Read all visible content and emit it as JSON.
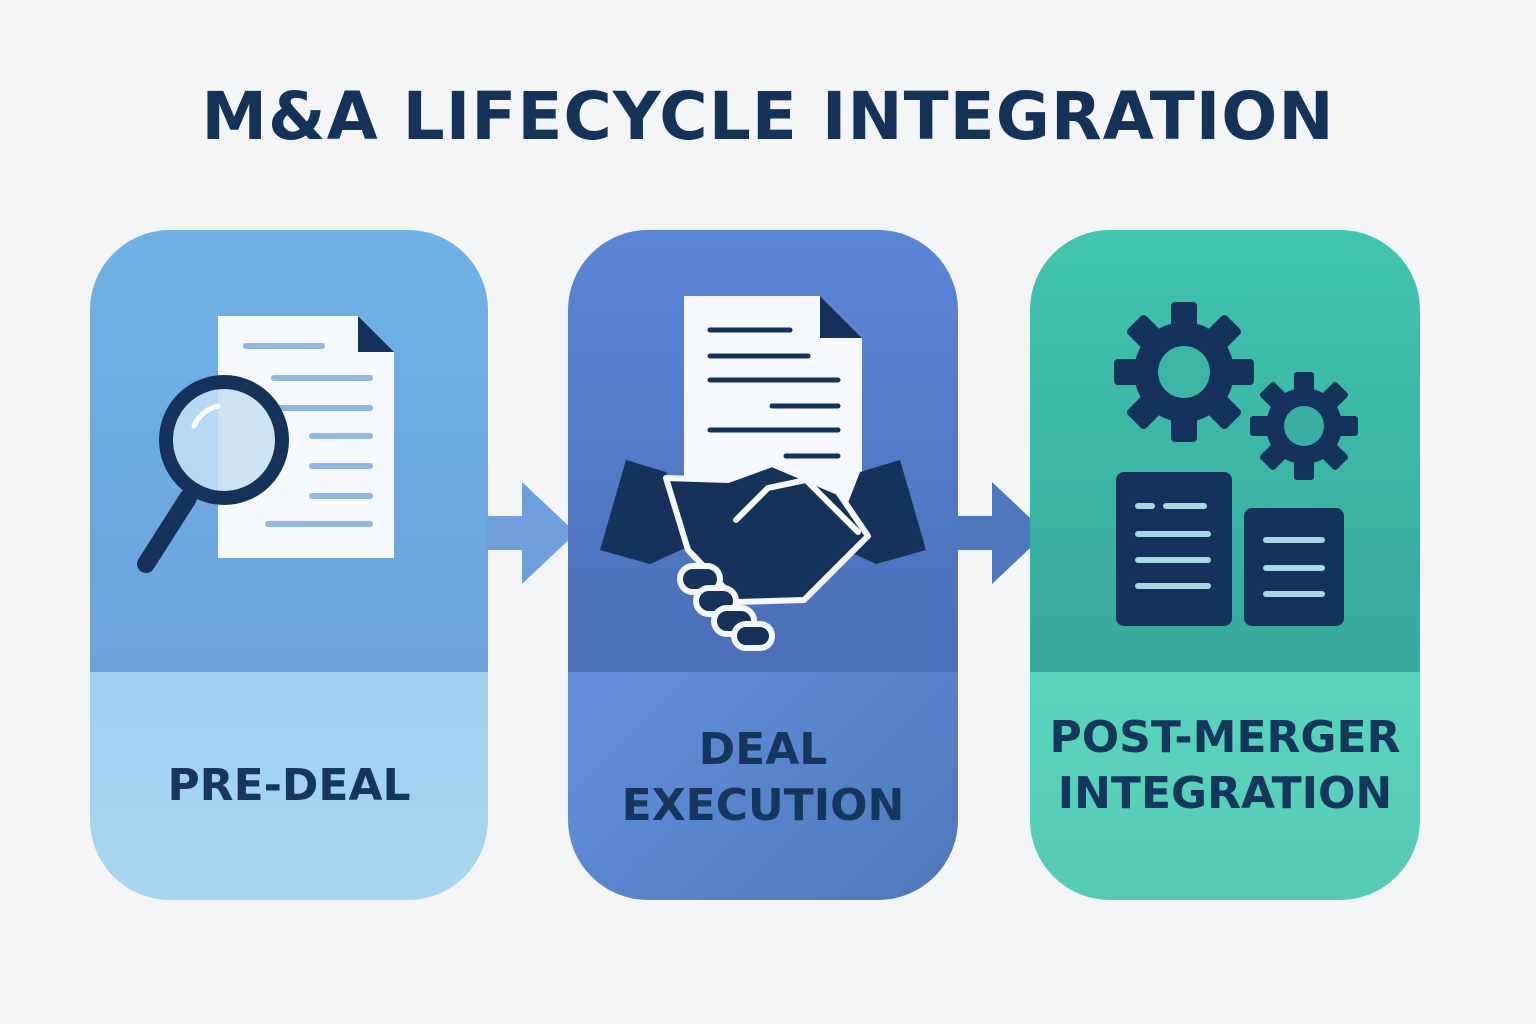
{
  "title": "M&A LIFECYCLE INTEGRATION",
  "stages": [
    {
      "label_lines": [
        "PRE-DEAL"
      ],
      "icon": "document-search-icon"
    },
    {
      "label_lines": [
        "DEAL",
        "EXECUTION"
      ],
      "icon": "handshake-contract-icon"
    },
    {
      "label_lines": [
        "POST-MERGER",
        "INTEGRATION"
      ],
      "icon": "gears-documents-icon"
    }
  ],
  "colors": {
    "title": "#14325a",
    "icon_dark": "#14325a",
    "stage1": "#6fb2e6",
    "stage2": "#5b86d8",
    "stage3": "#41c5b0"
  }
}
